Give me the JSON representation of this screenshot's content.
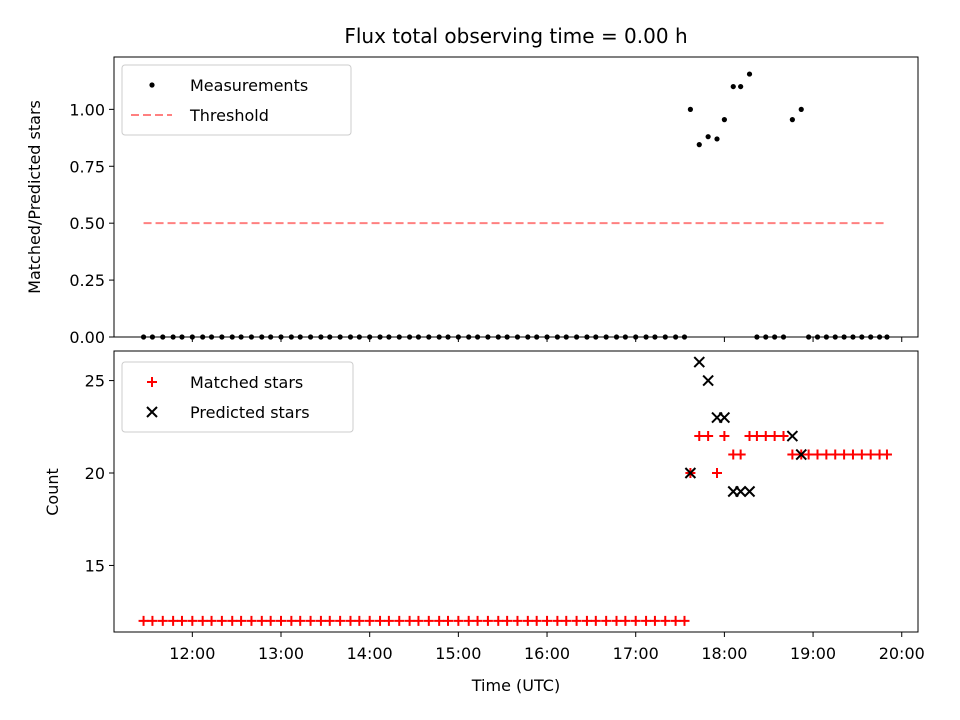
{
  "chart_data": {
    "type": "scatter",
    "title": "Flux total observing time = 0.00 h",
    "xlabel": "Time (UTC)",
    "x_ticks": [
      "12:00",
      "13:00",
      "14:00",
      "15:00",
      "16:00",
      "17:00",
      "18:00",
      "19:00",
      "20:00"
    ],
    "xlim": [
      "11:07",
      "20:11"
    ],
    "top_panel": {
      "ylabel": "Matched/Predicted stars",
      "ylim": [
        0,
        1.23
      ],
      "y_ticks": [
        "0.00",
        "0.25",
        "0.50",
        "0.75",
        "1.00"
      ],
      "legend_position": "upper-left",
      "series": [
        {
          "name": "Measurements",
          "color": "#000000",
          "marker": "dot",
          "points": [
            [
              "11:27",
              0
            ],
            [
              "11:33",
              0
            ],
            [
              "11:40",
              0
            ],
            [
              "11:47",
              0
            ],
            [
              "11:53",
              0
            ],
            [
              "12:00",
              0
            ],
            [
              "12:07",
              0
            ],
            [
              "12:13",
              0
            ],
            [
              "12:20",
              0
            ],
            [
              "12:27",
              0
            ],
            [
              "12:33",
              0
            ],
            [
              "12:40",
              0
            ],
            [
              "12:47",
              0
            ],
            [
              "12:53",
              0
            ],
            [
              "13:00",
              0
            ],
            [
              "13:07",
              0
            ],
            [
              "13:13",
              0
            ],
            [
              "13:20",
              0
            ],
            [
              "13:27",
              0
            ],
            [
              "13:33",
              0
            ],
            [
              "13:40",
              0
            ],
            [
              "13:47",
              0
            ],
            [
              "13:53",
              0
            ],
            [
              "14:00",
              0
            ],
            [
              "14:07",
              0
            ],
            [
              "14:13",
              0
            ],
            [
              "14:20",
              0
            ],
            [
              "14:27",
              0
            ],
            [
              "14:33",
              0
            ],
            [
              "14:40",
              0
            ],
            [
              "14:47",
              0
            ],
            [
              "14:53",
              0
            ],
            [
              "15:00",
              0
            ],
            [
              "15:07",
              0
            ],
            [
              "15:13",
              0
            ],
            [
              "15:20",
              0
            ],
            [
              "15:27",
              0
            ],
            [
              "15:33",
              0
            ],
            [
              "15:40",
              0
            ],
            [
              "15:47",
              0
            ],
            [
              "15:53",
              0
            ],
            [
              "16:00",
              0
            ],
            [
              "16:07",
              0
            ],
            [
              "16:13",
              0
            ],
            [
              "16:20",
              0
            ],
            [
              "16:27",
              0
            ],
            [
              "16:33",
              0
            ],
            [
              "16:40",
              0
            ],
            [
              "16:47",
              0
            ],
            [
              "16:53",
              0
            ],
            [
              "17:00",
              0
            ],
            [
              "17:07",
              0
            ],
            [
              "17:13",
              0
            ],
            [
              "17:20",
              0
            ],
            [
              "17:27",
              0
            ],
            [
              "17:33",
              0
            ],
            [
              "17:37",
              1.0
            ],
            [
              "17:43",
              0.845
            ],
            [
              "17:49",
              0.88
            ],
            [
              "17:55",
              0.87
            ],
            [
              "18:00",
              0.955
            ],
            [
              "18:06",
              1.1
            ],
            [
              "18:11",
              1.1
            ],
            [
              "18:17",
              1.155
            ],
            [
              "18:22",
              0
            ],
            [
              "18:28",
              0
            ],
            [
              "18:34",
              0
            ],
            [
              "18:40",
              0
            ],
            [
              "18:46",
              0.955
            ],
            [
              "18:52",
              1.0
            ],
            [
              "18:57",
              0
            ],
            [
              "19:03",
              0
            ],
            [
              "19:09",
              0
            ],
            [
              "19:15",
              0
            ],
            [
              "19:21",
              0
            ],
            [
              "19:27",
              0
            ],
            [
              "19:33",
              0
            ],
            [
              "19:39",
              0
            ],
            [
              "19:45",
              0
            ],
            [
              "19:50",
              0
            ]
          ]
        },
        {
          "name": "Threshold",
          "color": "#ff8080",
          "style": "dashed",
          "points": [
            [
              "11:27",
              0.5
            ],
            [
              "19:50",
              0.5
            ]
          ]
        }
      ]
    },
    "bottom_panel": {
      "ylabel": "Count",
      "ylim": [
        11.4,
        26.6
      ],
      "y_ticks": [
        "15",
        "20",
        "25"
      ],
      "legend_position": "upper-left",
      "series": [
        {
          "name": "Matched stars",
          "color": "#ff0000",
          "marker": "plus",
          "points": [
            [
              "11:27",
              12
            ],
            [
              "11:33",
              12
            ],
            [
              "11:40",
              12
            ],
            [
              "11:47",
              12
            ],
            [
              "11:53",
              12
            ],
            [
              "12:00",
              12
            ],
            [
              "12:07",
              12
            ],
            [
              "12:13",
              12
            ],
            [
              "12:20",
              12
            ],
            [
              "12:27",
              12
            ],
            [
              "12:33",
              12
            ],
            [
              "12:40",
              12
            ],
            [
              "12:47",
              12
            ],
            [
              "12:53",
              12
            ],
            [
              "13:00",
              12
            ],
            [
              "13:07",
              12
            ],
            [
              "13:13",
              12
            ],
            [
              "13:20",
              12
            ],
            [
              "13:27",
              12
            ],
            [
              "13:33",
              12
            ],
            [
              "13:40",
              12
            ],
            [
              "13:47",
              12
            ],
            [
              "13:53",
              12
            ],
            [
              "14:00",
              12
            ],
            [
              "14:07",
              12
            ],
            [
              "14:13",
              12
            ],
            [
              "14:20",
              12
            ],
            [
              "14:27",
              12
            ],
            [
              "14:33",
              12
            ],
            [
              "14:40",
              12
            ],
            [
              "14:47",
              12
            ],
            [
              "14:53",
              12
            ],
            [
              "15:00",
              12
            ],
            [
              "15:07",
              12
            ],
            [
              "15:13",
              12
            ],
            [
              "15:20",
              12
            ],
            [
              "15:27",
              12
            ],
            [
              "15:33",
              12
            ],
            [
              "15:40",
              12
            ],
            [
              "15:47",
              12
            ],
            [
              "15:53",
              12
            ],
            [
              "16:00",
              12
            ],
            [
              "16:07",
              12
            ],
            [
              "16:13",
              12
            ],
            [
              "16:20",
              12
            ],
            [
              "16:27",
              12
            ],
            [
              "16:33",
              12
            ],
            [
              "16:40",
              12
            ],
            [
              "16:47",
              12
            ],
            [
              "16:53",
              12
            ],
            [
              "17:00",
              12
            ],
            [
              "17:07",
              12
            ],
            [
              "17:13",
              12
            ],
            [
              "17:20",
              12
            ],
            [
              "17:27",
              12
            ],
            [
              "17:33",
              12
            ],
            [
              "17:37",
              20
            ],
            [
              "17:43",
              22
            ],
            [
              "17:49",
              22
            ],
            [
              "17:55",
              20
            ],
            [
              "18:00",
              22
            ],
            [
              "18:06",
              21
            ],
            [
              "18:11",
              21
            ],
            [
              "18:17",
              22
            ],
            [
              "18:22",
              22
            ],
            [
              "18:28",
              22
            ],
            [
              "18:34",
              22
            ],
            [
              "18:40",
              22
            ],
            [
              "18:46",
              21
            ],
            [
              "18:52",
              21
            ],
            [
              "18:57",
              21
            ],
            [
              "19:03",
              21
            ],
            [
              "19:09",
              21
            ],
            [
              "19:15",
              21
            ],
            [
              "19:21",
              21
            ],
            [
              "19:27",
              21
            ],
            [
              "19:33",
              21
            ],
            [
              "19:39",
              21
            ],
            [
              "19:45",
              21
            ],
            [
              "19:50",
              21
            ]
          ]
        },
        {
          "name": "Predicted stars",
          "color": "#000000",
          "marker": "x",
          "points": [
            [
              "17:37",
              20
            ],
            [
              "17:43",
              26
            ],
            [
              "17:49",
              25
            ],
            [
              "17:55",
              23
            ],
            [
              "18:00",
              23
            ],
            [
              "18:06",
              19
            ],
            [
              "18:11",
              19
            ],
            [
              "18:17",
              19
            ],
            [
              "18:46",
              22
            ],
            [
              "18:52",
              21
            ]
          ]
        }
      ]
    }
  }
}
